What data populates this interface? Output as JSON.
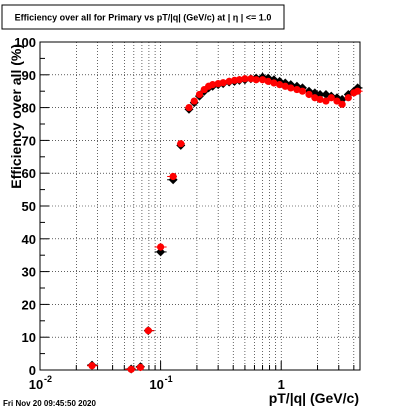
{
  "timestamp": "Fri Nov 20 09:45:50 2020",
  "chart_data": {
    "type": "scatter",
    "title": "Efficiency over all for Primary vs pT/|q| (GeV/c) at | η | <= 1.0",
    "xlabel": "pT/|q| (GeV/c)",
    "ylabel": "Efficiency over all (%)",
    "xscale": "log",
    "xlim": [
      0.01,
      4.5
    ],
    "ylim": [
      0,
      100
    ],
    "grid": true,
    "x_ticks": [
      {
        "value": 0.01,
        "label": "10",
        "sup": "-2"
      },
      {
        "value": 0.1,
        "label": "10",
        "sup": "-1"
      },
      {
        "value": 1,
        "label": "1",
        "sup": ""
      }
    ],
    "y_ticks": [
      "0",
      "10",
      "20",
      "30",
      "40",
      "50",
      "60",
      "70",
      "80",
      "90",
      "100"
    ],
    "series": [
      {
        "color": "#000000",
        "marker": "diamond",
        "points": [
          [
            0.027,
            1.5
          ],
          [
            0.057,
            0.3
          ],
          [
            0.068,
            1.0
          ],
          [
            0.079,
            12
          ],
          [
            0.1,
            36
          ],
          [
            0.127,
            58
          ],
          [
            0.147,
            68.5
          ],
          [
            0.172,
            79.5
          ],
          [
            0.19,
            81.5
          ],
          [
            0.21,
            83.5
          ],
          [
            0.23,
            85
          ],
          [
            0.25,
            86
          ],
          [
            0.27,
            86.5
          ],
          [
            0.3,
            87
          ],
          [
            0.33,
            87.3
          ],
          [
            0.37,
            87.8
          ],
          [
            0.41,
            88
          ],
          [
            0.45,
            88.3
          ],
          [
            0.5,
            88.5
          ],
          [
            0.56,
            88.8
          ],
          [
            0.62,
            89
          ],
          [
            0.7,
            89.3
          ],
          [
            0.78,
            89
          ],
          [
            0.87,
            88.5
          ],
          [
            0.97,
            88
          ],
          [
            1.08,
            87.5
          ],
          [
            1.2,
            87
          ],
          [
            1.35,
            86.5
          ],
          [
            1.5,
            86
          ],
          [
            1.7,
            85
          ],
          [
            1.9,
            84.5
          ],
          [
            2.1,
            84
          ],
          [
            2.35,
            84
          ],
          [
            2.6,
            83.5
          ],
          [
            2.9,
            83
          ],
          [
            3.2,
            82.5
          ],
          [
            3.6,
            84
          ],
          [
            4.0,
            85
          ],
          [
            4.3,
            86
          ]
        ]
      },
      {
        "color": "#ff0000",
        "marker": "circle",
        "points": [
          [
            0.027,
            1.3
          ],
          [
            0.057,
            0.2
          ],
          [
            0.068,
            0.8
          ],
          [
            0.079,
            12
          ],
          [
            0.1,
            37.5
          ],
          [
            0.127,
            59
          ],
          [
            0.147,
            69
          ],
          [
            0.172,
            80
          ],
          [
            0.19,
            82
          ],
          [
            0.21,
            84
          ],
          [
            0.23,
            85.5
          ],
          [
            0.25,
            86.5
          ],
          [
            0.27,
            87
          ],
          [
            0.3,
            87.3
          ],
          [
            0.33,
            87.6
          ],
          [
            0.37,
            88
          ],
          [
            0.41,
            88.3
          ],
          [
            0.45,
            88.5
          ],
          [
            0.5,
            88.8
          ],
          [
            0.56,
            88.8
          ],
          [
            0.62,
            88.5
          ],
          [
            0.7,
            88.5
          ],
          [
            0.78,
            88
          ],
          [
            0.87,
            87.5
          ],
          [
            0.97,
            87
          ],
          [
            1.08,
            86.5
          ],
          [
            1.2,
            86
          ],
          [
            1.35,
            85.5
          ],
          [
            1.5,
            85
          ],
          [
            1.7,
            84
          ],
          [
            1.9,
            83
          ],
          [
            2.1,
            82.5
          ],
          [
            2.35,
            82
          ],
          [
            2.6,
            83
          ],
          [
            2.9,
            82
          ],
          [
            3.2,
            81
          ],
          [
            3.6,
            83
          ],
          [
            4.0,
            84.5
          ],
          [
            4.3,
            85
          ]
        ]
      }
    ]
  }
}
